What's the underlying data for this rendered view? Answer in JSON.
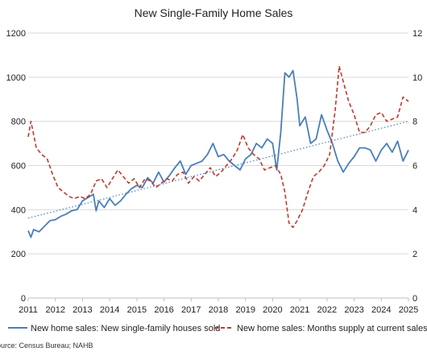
{
  "chart_data": {
    "type": "line",
    "title": "New Single-Family Home Sales",
    "source": "Source: Census Bureau; NAHB",
    "x_ticks": [
      "2011",
      "2012",
      "2013",
      "2014",
      "2015",
      "2016",
      "2017",
      "2018",
      "2019",
      "2020",
      "2021",
      "2022",
      "2023",
      "2024",
      "2025"
    ],
    "xlim": [
      2011,
      2025
    ],
    "y_left": {
      "ylim": [
        0,
        1200
      ],
      "ticks": [
        "0",
        "200",
        "400",
        "600",
        "800",
        "1000",
        "1200"
      ]
    },
    "y_right": {
      "ylim": [
        0,
        12
      ],
      "ticks": [
        "0",
        "2",
        "4",
        "6",
        "8",
        "10",
        "12"
      ]
    },
    "grid": "horizontal",
    "legend_position": "bottom",
    "series": [
      {
        "name": "New home sales: New single-family houses sold",
        "axis": "left",
        "color": "#4a7ebb",
        "style": "solid",
        "x": [
          2011.0,
          2011.1,
          2011.2,
          2011.4,
          2011.6,
          2011.8,
          2012.0,
          2012.2,
          2012.4,
          2012.6,
          2012.8,
          2013.0,
          2013.2,
          2013.4,
          2013.5,
          2013.6,
          2013.8,
          2014.0,
          2014.2,
          2014.4,
          2014.6,
          2014.8,
          2015.0,
          2015.2,
          2015.4,
          2015.6,
          2015.8,
          2016.0,
          2016.2,
          2016.4,
          2016.6,
          2016.8,
          2017.0,
          2017.2,
          2017.4,
          2017.6,
          2017.8,
          2018.0,
          2018.2,
          2018.4,
          2018.6,
          2018.8,
          2019.0,
          2019.2,
          2019.4,
          2019.6,
          2019.8,
          2020.0,
          2020.15,
          2020.3,
          2020.45,
          2020.6,
          2020.75,
          2020.9,
          2021.0,
          2021.2,
          2021.4,
          2021.6,
          2021.8,
          2022.0,
          2022.2,
          2022.4,
          2022.6,
          2022.8,
          2023.0,
          2023.2,
          2023.4,
          2023.6,
          2023.8,
          2024.0,
          2024.2,
          2024.4,
          2024.6,
          2024.8,
          2025.0
        ],
        "values": [
          305,
          275,
          310,
          300,
          325,
          350,
          355,
          370,
          380,
          395,
          400,
          440,
          455,
          470,
          395,
          440,
          410,
          450,
          420,
          440,
          470,
          495,
          510,
          500,
          545,
          520,
          570,
          525,
          555,
          590,
          620,
          560,
          600,
          610,
          620,
          650,
          700,
          640,
          650,
          620,
          600,
          580,
          630,
          650,
          700,
          680,
          720,
          700,
          580,
          750,
          1020,
          1000,
          1030,
          900,
          780,
          820,
          700,
          720,
          830,
          760,
          700,
          620,
          570,
          610,
          640,
          680,
          680,
          670,
          620,
          670,
          700,
          660,
          710,
          620,
          670
        ]
      },
      {
        "name": "New home sales: Months supply at current sales rate",
        "axis": "right",
        "color": "#c0392b",
        "style": "dashed",
        "x": [
          2011.0,
          2011.1,
          2011.3,
          2011.5,
          2011.7,
          2011.9,
          2012.1,
          2012.3,
          2012.5,
          2012.7,
          2012.9,
          2013.1,
          2013.3,
          2013.5,
          2013.7,
          2013.9,
          2014.1,
          2014.3,
          2014.5,
          2014.7,
          2014.9,
          2015.1,
          2015.3,
          2015.5,
          2015.7,
          2015.9,
          2016.1,
          2016.3,
          2016.5,
          2016.7,
          2016.9,
          2017.1,
          2017.3,
          2017.5,
          2017.7,
          2017.9,
          2018.1,
          2018.3,
          2018.5,
          2018.7,
          2018.9,
          2019.1,
          2019.3,
          2019.5,
          2019.7,
          2019.9,
          2020.1,
          2020.3,
          2020.45,
          2020.6,
          2020.75,
          2020.9,
          2021.1,
          2021.3,
          2021.5,
          2021.7,
          2021.9,
          2022.1,
          2022.3,
          2022.45,
          2022.6,
          2022.8,
          2023.0,
          2023.2,
          2023.4,
          2023.6,
          2023.8,
          2024.0,
          2024.2,
          2024.4,
          2024.6,
          2024.8,
          2025.0
        ],
        "values": [
          7.3,
          8.0,
          6.8,
          6.5,
          6.3,
          5.6,
          5.0,
          4.8,
          4.6,
          4.5,
          4.6,
          4.5,
          4.7,
          5.3,
          5.4,
          5.0,
          5.4,
          5.8,
          5.5,
          5.2,
          5.4,
          5.0,
          5.4,
          5.3,
          5.0,
          5.2,
          5.4,
          5.3,
          5.6,
          5.7,
          5.2,
          5.5,
          5.3,
          5.6,
          5.9,
          5.5,
          5.7,
          6.0,
          6.3,
          6.7,
          7.4,
          6.8,
          6.5,
          6.3,
          5.8,
          5.9,
          6.0,
          5.6,
          4.8,
          3.4,
          3.2,
          3.5,
          4.0,
          4.8,
          5.5,
          5.7,
          6.0,
          6.5,
          8.5,
          10.5,
          9.8,
          8.9,
          8.3,
          7.5,
          7.5,
          7.8,
          8.3,
          8.4,
          8.0,
          8.1,
          8.2,
          9.1,
          8.9
        ]
      },
      {
        "name": "",
        "axis": "left",
        "color": "#4a7ebb",
        "style": "dotted-trend",
        "x": [
          2011.0,
          2025.0
        ],
        "values": [
          362,
          800
        ]
      }
    ]
  }
}
